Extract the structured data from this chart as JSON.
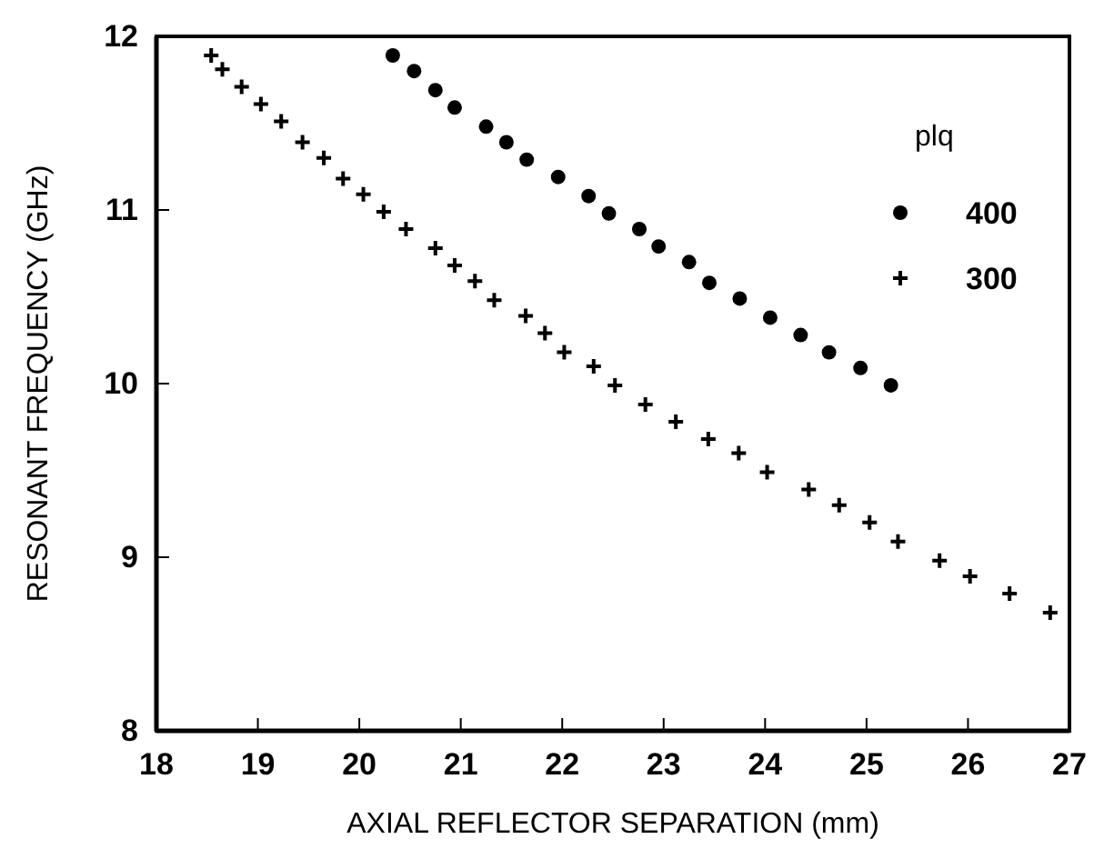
{
  "chart_data": {
    "type": "scatter",
    "xlabel": "AXIAL REFLECTOR SEPARATION (mm)",
    "ylabel": "RESONANT FREQUENCY (GHz)",
    "legend_title": "plq",
    "legend": "top right",
    "xlim": [
      18,
      27
    ],
    "ylim": [
      8,
      12
    ],
    "xticks": [
      18,
      19,
      20,
      21,
      22,
      23,
      24,
      25,
      26,
      27
    ],
    "yticks": [
      8,
      9,
      10,
      11,
      12
    ],
    "series": [
      {
        "name": "400",
        "color": "#000000",
        "marker": "circle",
        "x": [
          20.33,
          20.54,
          20.75,
          20.94,
          21.25,
          21.45,
          21.65,
          21.96,
          22.26,
          22.46,
          22.76,
          22.95,
          23.25,
          23.45,
          23.75,
          24.05,
          24.35,
          24.63,
          24.94,
          25.24
        ],
        "values": [
          11.89,
          11.8,
          11.69,
          11.59,
          11.48,
          11.39,
          11.29,
          11.19,
          11.08,
          10.98,
          10.89,
          10.79,
          10.7,
          10.58,
          10.49,
          10.38,
          10.28,
          10.18,
          10.09,
          9.99
        ]
      },
      {
        "name": "300",
        "color": "#000000",
        "marker": "cross",
        "x": [
          18.54,
          18.65,
          18.84,
          19.03,
          19.23,
          19.44,
          19.65,
          19.84,
          20.04,
          20.24,
          20.46,
          20.75,
          20.94,
          21.14,
          21.33,
          21.64,
          21.83,
          22.02,
          22.31,
          22.52,
          22.82,
          23.12,
          23.44,
          23.74,
          24.02,
          24.43,
          24.73,
          25.03,
          25.31,
          25.72,
          26.02,
          26.41,
          26.81
        ],
        "values": [
          11.89,
          11.81,
          11.71,
          11.61,
          11.51,
          11.39,
          11.3,
          11.18,
          11.09,
          10.99,
          10.89,
          10.78,
          10.68,
          10.59,
          10.48,
          10.39,
          10.29,
          10.18,
          10.1,
          9.99,
          9.88,
          9.78,
          9.68,
          9.6,
          9.49,
          9.39,
          9.3,
          9.2,
          9.09,
          8.98,
          8.89,
          8.79,
          8.68
        ]
      }
    ]
  }
}
